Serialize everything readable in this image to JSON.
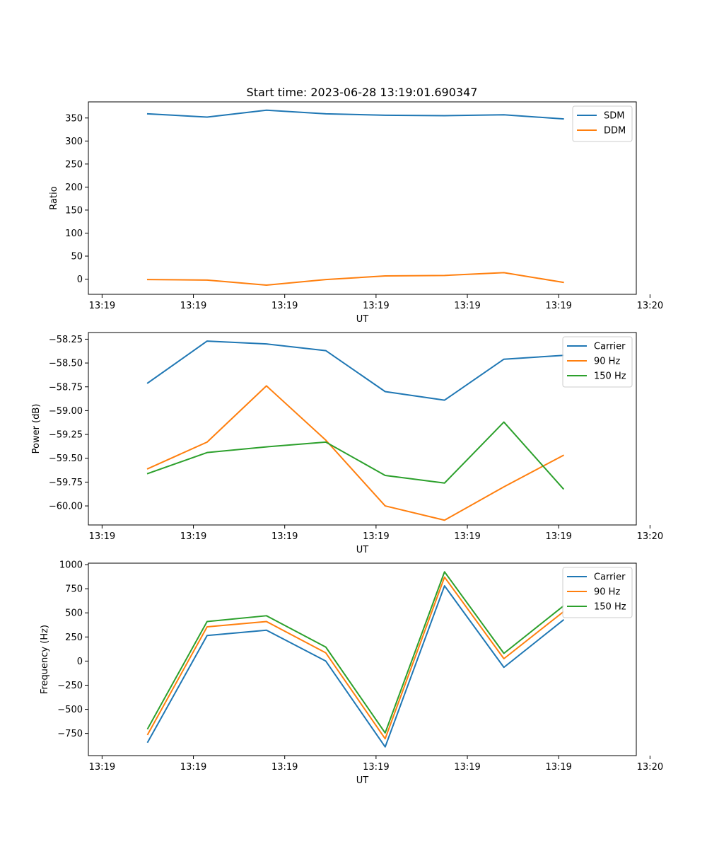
{
  "title": "Start time: 2023-06-28 13:19:01.690347",
  "colors": {
    "blue": "#1f77b4",
    "orange": "#ff7f0e",
    "green": "#2ca02c"
  },
  "chart_data": [
    {
      "type": "line",
      "title": "Start time: 2023-06-28 13:19:01.690347",
      "xlabel": "UT",
      "ylabel": "Ratio",
      "x": [
        0.5,
        1.15,
        1.8,
        2.45,
        3.1,
        3.75,
        4.4,
        5.05
      ],
      "xlim": [
        -0.15,
        5.85
      ],
      "x_ticks": [
        0,
        1,
        2,
        3,
        4,
        5,
        6
      ],
      "x_tick_labels": [
        "13:19",
        "13:19",
        "13:19",
        "13:19",
        "13:19",
        "13:19",
        "13:20"
      ],
      "ylim": [
        -33,
        385
      ],
      "y_ticks": [
        0,
        50,
        100,
        150,
        200,
        250,
        300,
        350
      ],
      "y_tick_labels": [
        "0",
        "50",
        "100",
        "150",
        "200",
        "250",
        "300",
        "350"
      ],
      "legend": "top-right",
      "series": [
        {
          "name": "SDM",
          "color": "#1f77b4",
          "values": [
            359,
            352,
            367,
            359,
            356,
            355,
            357,
            348
          ]
        },
        {
          "name": "DDM",
          "color": "#ff7f0e",
          "values": [
            -1,
            -2,
            -13,
            -1,
            7,
            8,
            14,
            -7
          ]
        }
      ]
    },
    {
      "type": "line",
      "title": "",
      "xlabel": "UT",
      "ylabel": "Power (dB)",
      "x": [
        0.5,
        1.15,
        1.8,
        2.45,
        3.1,
        3.75,
        4.4,
        5.05
      ],
      "xlim": [
        -0.15,
        5.85
      ],
      "x_ticks": [
        0,
        1,
        2,
        3,
        4,
        5,
        6
      ],
      "x_tick_labels": [
        "13:19",
        "13:19",
        "13:19",
        "13:19",
        "13:19",
        "13:19",
        "13:20"
      ],
      "ylim": [
        -60.2,
        -58.18
      ],
      "y_ticks": [
        -60.0,
        -59.75,
        -59.5,
        -59.25,
        -59.0,
        -58.75,
        -58.5,
        -58.25
      ],
      "y_tick_labels": [
        "−60.00",
        "−59.75",
        "−59.50",
        "−59.25",
        "−59.00",
        "−58.75",
        "−58.50",
        "−58.25"
      ],
      "legend": "top-right",
      "series": [
        {
          "name": "Carrier",
          "color": "#1f77b4",
          "values": [
            -58.71,
            -58.27,
            -58.3,
            -58.37,
            -58.8,
            -58.89,
            -58.46,
            -58.42
          ]
        },
        {
          "name": "90 Hz",
          "color": "#ff7f0e",
          "values": [
            -59.61,
            -59.33,
            -58.74,
            -59.31,
            -60.0,
            -60.15,
            -59.8,
            -59.47
          ]
        },
        {
          "name": "150 Hz",
          "color": "#2ca02c",
          "values": [
            -59.66,
            -59.44,
            -59.38,
            -59.33,
            -59.68,
            -59.76,
            -59.12,
            -59.82
          ]
        }
      ]
    },
    {
      "type": "line",
      "title": "",
      "xlabel": "UT",
      "ylabel": "Frequency (Hz)",
      "x": [
        0.5,
        1.15,
        1.8,
        2.45,
        3.1,
        3.75,
        4.4,
        5.05
      ],
      "xlim": [
        -0.15,
        5.85
      ],
      "x_ticks": [
        0,
        1,
        2,
        3,
        4,
        5,
        6
      ],
      "x_tick_labels": [
        "13:19",
        "13:19",
        "13:19",
        "13:19",
        "13:19",
        "13:19",
        "13:20"
      ],
      "ylim": [
        -980,
        1015
      ],
      "y_ticks": [
        -750,
        -500,
        -250,
        0,
        250,
        500,
        750,
        1000
      ],
      "y_tick_labels": [
        "−750",
        "−500",
        "−250",
        "0",
        "250",
        "500",
        "750",
        "1000"
      ],
      "legend": "top-right",
      "series": [
        {
          "name": "Carrier",
          "color": "#1f77b4",
          "values": [
            -840,
            265,
            320,
            0,
            -890,
            780,
            -65,
            425
          ]
        },
        {
          "name": "90 Hz",
          "color": "#ff7f0e",
          "values": [
            -760,
            355,
            410,
            85,
            -805,
            870,
            25,
            510
          ]
        },
        {
          "name": "150 Hz",
          "color": "#2ca02c",
          "values": [
            -700,
            410,
            470,
            145,
            -745,
            925,
            80,
            570
          ]
        }
      ]
    }
  ]
}
